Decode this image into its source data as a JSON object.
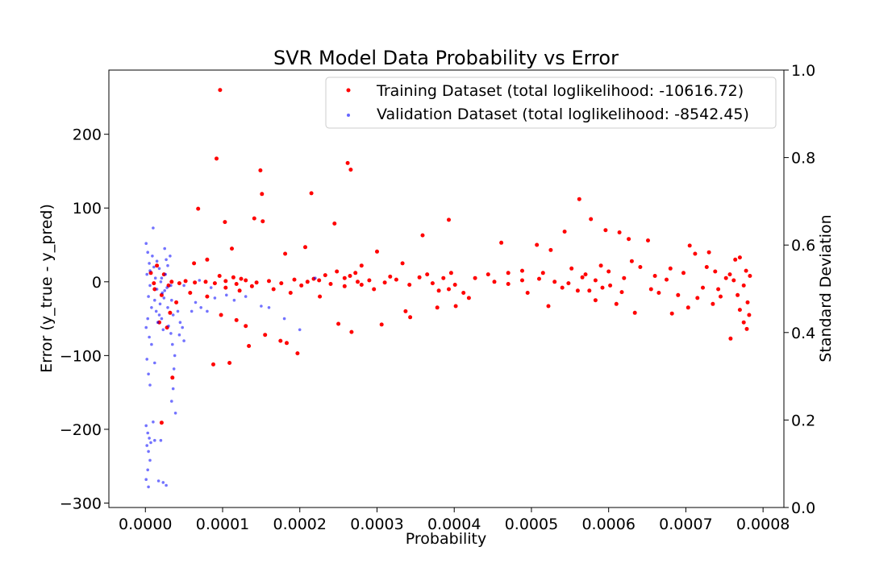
{
  "chart_data": {
    "type": "scatter",
    "title": "SVR Model Data Probability vs Error",
    "xlabel": "Probability",
    "ylabel": "Error (y_true - y_pred)",
    "ylabel_right": "Standard Deviation",
    "xlim": [
      -4.73e-05,
      0.000827
    ],
    "ylim": [
      -306,
      287
    ],
    "ylim_right": [
      0.0,
      1.0
    ],
    "x_ticks": [
      "0.0000",
      "0.0001",
      "0.0002",
      "0.0003",
      "0.0004",
      "0.0005",
      "0.0006",
      "0.0007",
      "0.0008"
    ],
    "y_ticks": [
      "200",
      "100",
      "0",
      "−100",
      "−200",
      "−300"
    ],
    "y_ticks_right": [
      "1.0",
      "0.8",
      "0.6",
      "0.4",
      "0.2",
      "0.0"
    ],
    "legend_position": "top-right",
    "series": [
      {
        "name": "Training Dataset (total loglikelihood: -10616.72)",
        "color": "#ff0000",
        "points": [
          [
            9.67e-05,
            260
          ],
          [
            9.21e-05,
            167
          ],
          [
            0.000262,
            161
          ],
          [
            0.000266,
            152
          ],
          [
            0.000149,
            151
          ],
          [
            0.000151,
            119
          ],
          [
            0.000215,
            120
          ],
          [
            0.000562,
            112
          ],
          [
            6.83e-05,
            99
          ],
          [
            0.000103,
            81
          ],
          [
            0.000141,
            86
          ],
          [
            0.000152,
            82
          ],
          [
            0.000393,
            84
          ],
          [
            0.000577,
            85
          ],
          [
            0.000245,
            79
          ],
          [
            0.000596,
            70
          ],
          [
            0.000614,
            67
          ],
          [
            0.000543,
            68
          ],
          [
            0.000626,
            58
          ],
          [
            0.000651,
            56
          ],
          [
            0.000359,
            63
          ],
          [
            0.000507,
            50
          ],
          [
            0.000461,
            53
          ],
          [
            0.000705,
            49
          ],
          [
            0.000207,
            47
          ],
          [
            0.000112,
            45
          ],
          [
            0.000525,
            43
          ],
          [
            0.000712,
            38
          ],
          [
            0.00073,
            40
          ],
          [
            0.0003,
            41
          ],
          [
            0.000181,
            38
          ],
          [
            0.000764,
            30
          ],
          [
            0.00077,
            33
          ],
          [
            8e-05,
            30
          ],
          [
            6.3e-05,
            25
          ],
          [
            0.00028,
            22
          ],
          [
            0.000333,
            25
          ],
          [
            0.000444,
            10
          ],
          [
            0.00047,
            12
          ],
          [
            0.000488,
            15
          ],
          [
            0.000641,
            20
          ],
          [
            0.00068,
            18
          ],
          [
            0.000738,
            14
          ],
          [
            0.000783,
            8
          ],
          [
            0.000775,
            -5
          ],
          [
            0.000752,
            5
          ],
          [
            0.000722,
            -8
          ],
          [
            0.000697,
            12
          ],
          [
            0.000675,
            3
          ],
          [
            0.000655,
            -10
          ],
          [
            0.000602,
            -5
          ],
          [
            0.000583,
            2
          ],
          [
            0.000566,
            6
          ],
          [
            0.000548,
            -2
          ],
          [
            0.00053,
            0
          ],
          [
            0.00051,
            4
          ],
          [
            0.000488,
            2
          ],
          [
            0.00047,
            -3
          ],
          [
            0.000401,
            -4
          ],
          [
            0.000386,
            5
          ],
          [
            0.000372,
            -2
          ],
          [
            0.000355,
            6
          ],
          [
            0.000342,
            -4
          ],
          [
            0.000325,
            3
          ],
          [
            0.00031,
            -1
          ],
          [
            0.00029,
            2
          ],
          [
            0.000275,
            0
          ],
          [
            0.000258,
            5
          ],
          [
            0.00024,
            -3
          ],
          [
            0.000225,
            2
          ],
          [
            0.00021,
            0
          ],
          [
            0.000193,
            3
          ],
          [
            0.000176,
            -2
          ],
          [
            0.00016,
            1
          ],
          [
            0.000144,
            -1
          ],
          [
            0.00013,
            2
          ],
          [
            0.000118,
            -3
          ],
          [
            0.000104,
            1
          ],
          [
            9e-05,
            -2
          ],
          [
            7.8e-05,
            0
          ],
          [
            6.4e-05,
            -1
          ],
          [
            5.2e-05,
            1
          ],
          [
            4.4e-05,
            -2
          ],
          [
            3.4e-05,
            0
          ],
          [
            8.8e-05,
            -112
          ],
          [
            0.000109,
            -110
          ],
          [
            0.000134,
            -87
          ],
          [
            0.000155,
            -72
          ],
          [
            0.000197,
            -97
          ],
          [
            0.000175,
            -80
          ],
          [
            0.000183,
            -83
          ],
          [
            0.00013,
            -60
          ],
          [
            0.000118,
            -52
          ],
          [
            9.8e-05,
            -45
          ],
          [
            0.00025,
            -57
          ],
          [
            0.000267,
            -68
          ],
          [
            0.000306,
            -58
          ],
          [
            0.000337,
            -40
          ],
          [
            0.000343,
            -48
          ],
          [
            0.000378,
            -35
          ],
          [
            0.000402,
            -33
          ],
          [
            0.000522,
            -33
          ],
          [
            0.000583,
            -25
          ],
          [
            0.00061,
            -30
          ],
          [
            0.000634,
            -42
          ],
          [
            0.000682,
            -43
          ],
          [
            0.000703,
            -35
          ],
          [
            0.000735,
            -30
          ],
          [
            0.000758,
            -77
          ],
          [
            0.000775,
            -55
          ],
          [
            0.000779,
            -64
          ],
          [
            0.000782,
            -45
          ],
          [
            0.00077,
            -38
          ],
          [
            0.000745,
            -20
          ],
          [
            0.000715,
            -22
          ],
          [
            0.000665,
            -15
          ],
          [
            0.00056,
            -12
          ],
          [
            0.00054,
            -8
          ],
          [
            0.000419,
            -22
          ],
          [
            0.000412,
            -15
          ],
          [
            0.000393,
            -10
          ],
          [
            0.000226,
            -20
          ],
          [
            0.000188,
            -15
          ],
          [
            0.000166,
            -10
          ],
          [
            0.000122,
            -12
          ],
          [
            8e-05,
            -20
          ],
          [
            5.8e-05,
            -15
          ],
          [
            4e-05,
            -28
          ],
          [
            3.2e-05,
            -42
          ],
          [
            3.5e-05,
            -130
          ],
          [
            2.1e-05,
            -191
          ],
          [
            2.8e-05,
            -62
          ],
          [
            1.8e-05,
            -55
          ],
          [
            2.1e-05,
            -18
          ],
          [
            1.2e-05,
            -10
          ],
          [
            7e-06,
            12
          ],
          [
            1.5e-05,
            22
          ],
          [
            2.4e-05,
            10
          ],
          [
            3e-05,
            -5
          ],
          [
            1.1e-05,
            -2
          ],
          [
            0.000272,
            12
          ],
          [
            0.000265,
            8
          ],
          [
            0.000258,
            -6
          ],
          [
            0.00028,
            -4
          ],
          [
            0.000248,
            14
          ],
          [
            0.0006,
            14
          ],
          [
            0.000592,
            -8
          ],
          [
            0.00057,
            10
          ],
          [
            0.000575,
            -12
          ],
          [
            0.00062,
            5
          ],
          [
            0.000617,
            -14
          ],
          [
            0.000762,
            2
          ],
          [
            0.000767,
            -18
          ],
          [
            0.000757,
            10
          ],
          [
            0.00078,
            -28
          ],
          [
            9.6e-05,
            8
          ],
          [
            0.000104,
            -8
          ],
          [
            0.000114,
            6
          ],
          [
            0.000124,
            4
          ],
          [
            0.000138,
            -6
          ],
          [
            0.000202,
            -5
          ],
          [
            0.000218,
            4
          ],
          [
            0.000233,
            9
          ],
          [
            0.000296,
            -10
          ],
          [
            0.000317,
            7
          ],
          [
            0.000365,
            10
          ],
          [
            0.00038,
            -12
          ],
          [
            0.000396,
            12
          ],
          [
            0.000427,
            5
          ],
          [
            0.000452,
            0
          ],
          [
            0.000495,
            -15
          ],
          [
            0.000515,
            12
          ],
          [
            0.000552,
            18
          ],
          [
            0.00059,
            22
          ],
          [
            0.00063,
            28
          ],
          [
            0.00066,
            8
          ],
          [
            0.00069,
            -18
          ],
          [
            0.000727,
            20
          ],
          [
            0.000742,
            -10
          ],
          [
            0.000778,
            15
          ]
        ]
      },
      {
        "name": "Validation Dataset (total loglikelihood: -8542.45)",
        "color": "#0000ff",
        "points": [
          [
            1e-06,
            52
          ],
          [
            3e-06,
            40
          ],
          [
            5e-06,
            25
          ],
          [
            2e-06,
            10
          ],
          [
            6e-06,
            -5
          ],
          [
            4e-06,
            -20
          ],
          [
            8e-06,
            -35
          ],
          [
            3e-06,
            -50
          ],
          [
            1e-06,
            -62
          ],
          [
            5e-06,
            -75
          ],
          [
            2e-06,
            -105
          ],
          [
            4e-06,
            -125
          ],
          [
            6e-06,
            -140
          ],
          [
            1e-06,
            -195
          ],
          [
            3e-06,
            -205
          ],
          [
            5e-06,
            -212
          ],
          [
            7e-06,
            -218
          ],
          [
            2e-06,
            -222
          ],
          [
            4e-06,
            -230
          ],
          [
            6e-06,
            -242
          ],
          [
            3e-06,
            -255
          ],
          [
            1e-06,
            -268
          ],
          [
            4e-06,
            -278
          ],
          [
            1e-05,
            73
          ],
          [
            9e-06,
            35
          ],
          [
            1.1e-05,
            20
          ],
          [
            1.3e-05,
            5
          ],
          [
            1.5e-05,
            -10
          ],
          [
            1.2e-05,
            -25
          ],
          [
            1.4e-05,
            -40
          ],
          [
            1.6e-05,
            -55
          ],
          [
            1e-05,
            -190
          ],
          [
            1.2e-05,
            -215
          ],
          [
            1.7e-05,
            -270
          ],
          [
            1.8e-05,
            18
          ],
          [
            2e-05,
            0
          ],
          [
            2.2e-05,
            -15
          ],
          [
            1.9e-05,
            -30
          ],
          [
            2.1e-05,
            -50
          ],
          [
            2.3e-05,
            -65
          ],
          [
            2e-05,
            -215
          ],
          [
            2.5e-05,
            45
          ],
          [
            2.7e-05,
            30
          ],
          [
            2.6e-05,
            10
          ],
          [
            2.8e-05,
            -8
          ],
          [
            2.4e-05,
            -22
          ],
          [
            2.9e-05,
            -35
          ],
          [
            3e-05,
            -60
          ],
          [
            2.3e-05,
            -272
          ],
          [
            2.7e-05,
            -276
          ],
          [
            3.2e-05,
            35
          ],
          [
            3.4e-05,
            -25
          ],
          [
            3.6e-05,
            -45
          ],
          [
            3.3e-05,
            -70
          ],
          [
            3.5e-05,
            -85
          ],
          [
            3.8e-05,
            -100
          ],
          [
            3.7e-05,
            -118
          ],
          [
            3.6e-05,
            -145
          ],
          [
            3.4e-05,
            -162
          ],
          [
            3.9e-05,
            -178
          ],
          [
            4.2e-05,
            -40
          ],
          [
            4.5e-05,
            -55
          ],
          [
            4.8e-05,
            -62
          ],
          [
            5e-05,
            -80
          ],
          [
            4.4e-05,
            -72
          ],
          [
            6e-05,
            -40
          ],
          [
            6.5e-05,
            -28
          ],
          [
            7.2e-05,
            -35
          ],
          [
            8e-05,
            -40
          ],
          [
            9e-05,
            -22
          ],
          [
            0.000105,
            -18
          ],
          [
            0.000115,
            -25
          ],
          [
            0.00013,
            -20
          ],
          [
            0.00015,
            -33
          ],
          [
            0.00016,
            -35
          ],
          [
            0.00018,
            -50
          ],
          [
            0.0002,
            -65
          ],
          [
            0.00022,
            5
          ],
          [
            5e-05,
            -5
          ],
          [
            7e-05,
            2
          ],
          [
            8.5e-05,
            -8
          ],
          [
            1.5e-05,
            28
          ],
          [
            8e-06,
            -85
          ],
          [
            1.2e-05,
            -110
          ],
          [
            6e-06,
            15
          ],
          [
            1.8e-05,
            -45
          ],
          [
            2.1e-05,
            5
          ],
          [
            2.5e-05,
            -12
          ],
          [
            2.9e-05,
            22
          ],
          [
            3.3e-05,
            -5
          ]
        ]
      }
    ]
  }
}
